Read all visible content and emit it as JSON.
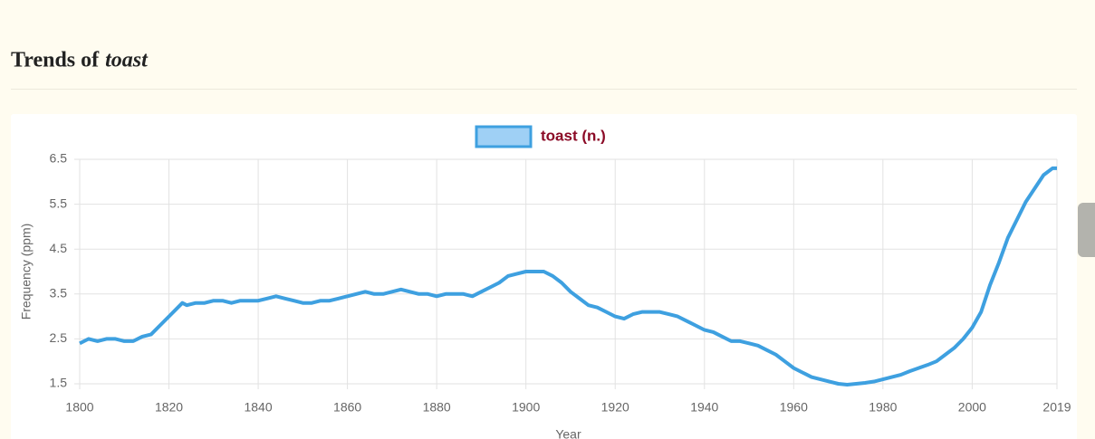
{
  "heading_prefix": "Trends of",
  "heading_term": "toast",
  "chart_data": {
    "type": "line",
    "xlabel": "Year",
    "ylabel": "Frequency (ppm)",
    "x": [
      1800,
      1802,
      1804,
      1806,
      1808,
      1810,
      1812,
      1814,
      1816,
      1818,
      1820,
      1822,
      1823,
      1824,
      1826,
      1828,
      1830,
      1832,
      1834,
      1836,
      1838,
      1840,
      1842,
      1844,
      1846,
      1848,
      1850,
      1852,
      1854,
      1856,
      1858,
      1860,
      1862,
      1864,
      1866,
      1868,
      1870,
      1872,
      1874,
      1876,
      1878,
      1880,
      1882,
      1884,
      1886,
      1888,
      1890,
      1892,
      1894,
      1896,
      1898,
      1900,
      1902,
      1904,
      1906,
      1908,
      1910,
      1912,
      1914,
      1916,
      1918,
      1920,
      1922,
      1924,
      1926,
      1928,
      1930,
      1932,
      1934,
      1936,
      1938,
      1940,
      1942,
      1944,
      1946,
      1948,
      1950,
      1952,
      1954,
      1956,
      1958,
      1960,
      1962,
      1964,
      1966,
      1968,
      1970,
      1972,
      1974,
      1976,
      1978,
      1980,
      1982,
      1984,
      1986,
      1988,
      1990,
      1992,
      1994,
      1996,
      1998,
      2000,
      2002,
      2004,
      2006,
      2008,
      2010,
      2012,
      2014,
      2016,
      2018,
      2019
    ],
    "series": [
      {
        "name": "toast (n.)",
        "color": "#3ea0e0",
        "fill": "#9fd0f5",
        "values": [
          2.4,
          2.5,
          2.45,
          2.5,
          2.5,
          2.45,
          2.45,
          2.55,
          2.6,
          2.8,
          3.0,
          3.2,
          3.3,
          3.25,
          3.3,
          3.3,
          3.35,
          3.35,
          3.3,
          3.35,
          3.35,
          3.35,
          3.4,
          3.45,
          3.4,
          3.35,
          3.3,
          3.3,
          3.35,
          3.35,
          3.4,
          3.45,
          3.5,
          3.55,
          3.5,
          3.5,
          3.55,
          3.6,
          3.55,
          3.5,
          3.5,
          3.45,
          3.5,
          3.5,
          3.5,
          3.45,
          3.55,
          3.65,
          3.75,
          3.9,
          3.95,
          4.0,
          4.0,
          4.0,
          3.9,
          3.75,
          3.55,
          3.4,
          3.25,
          3.2,
          3.1,
          3.0,
          2.95,
          3.05,
          3.1,
          3.1,
          3.1,
          3.05,
          3.0,
          2.9,
          2.8,
          2.7,
          2.65,
          2.55,
          2.45,
          2.45,
          2.4,
          2.35,
          2.25,
          2.15,
          2.0,
          1.85,
          1.75,
          1.65,
          1.6,
          1.55,
          1.5,
          1.48,
          1.5,
          1.52,
          1.55,
          1.6,
          1.65,
          1.7,
          1.78,
          1.85,
          1.92,
          2.0,
          2.15,
          2.3,
          2.5,
          2.75,
          3.1,
          3.7,
          4.2,
          4.75,
          5.15,
          5.55,
          5.85,
          6.15,
          6.3,
          6.3
        ]
      }
    ],
    "xlim": [
      1800,
      2019
    ],
    "xticks": [
      1800,
      1820,
      1840,
      1860,
      1880,
      1900,
      1920,
      1940,
      1960,
      1980,
      2000,
      2019
    ],
    "ylim": [
      1.5,
      6.5
    ],
    "yticks": [
      1.5,
      2.5,
      3.5,
      4.5,
      5.5,
      6.5
    ],
    "grid": true
  }
}
